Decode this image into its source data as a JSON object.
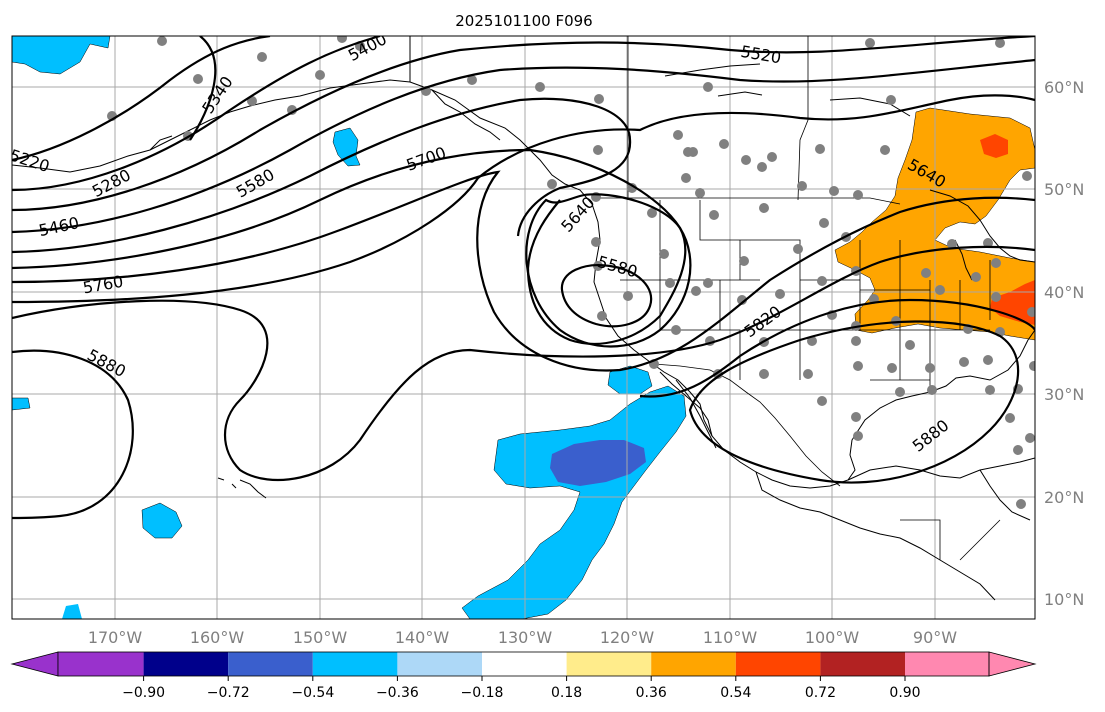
{
  "title": "2025101100 F096",
  "map": {
    "lat_labels": [
      "60°N",
      "50°N",
      "40°N",
      "30°N",
      "20°N",
      "10°N"
    ],
    "lon_labels": [
      "170°W",
      "160°W",
      "150°W",
      "140°W",
      "130°W",
      "120°W",
      "110°W",
      "100°W",
      "90°W"
    ]
  },
  "contour_labels": [
    "5400",
    "5340",
    "5520",
    "5220",
    "5280",
    "5460",
    "5580",
    "5700",
    "5640",
    "5640",
    "5580",
    "5760",
    "5820",
    "5880",
    "5880"
  ],
  "colorbar": {
    "ticks": [
      "−0.90",
      "−0.72",
      "−0.54",
      "−0.36",
      "−0.18",
      "0.18",
      "0.36",
      "0.54",
      "0.72",
      "0.90"
    ],
    "colors": [
      "#9932cc",
      "#00008b",
      "#3a5fcd",
      "#00bfff",
      "#add8f7",
      "#ffffff",
      "#ffec8b",
      "#ffa500",
      "#ff4500",
      "#b22222",
      "#ff88b0"
    ]
  },
  "shading_colors": {
    "light_blue": "#00bfff",
    "mid_blue": "#3a5fcd",
    "orange": "#ffa500",
    "red_orange": "#ff4500"
  },
  "station_color": "#808080"
}
